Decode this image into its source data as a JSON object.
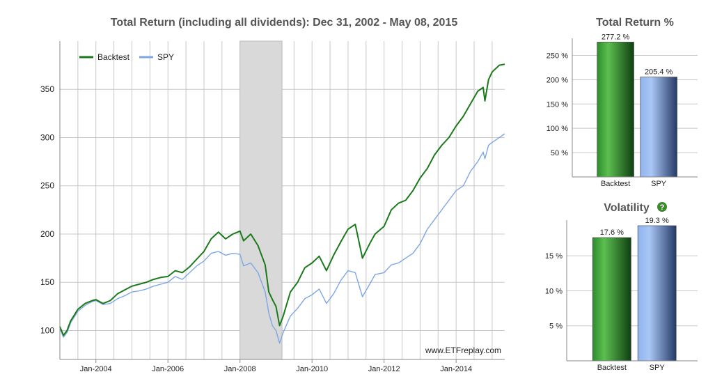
{
  "main_chart": {
    "title": "Total Return (including all dividends): Dec 31, 2002 - May 08, 2015",
    "watermark": "www.ETFreplay.com",
    "legend": [
      {
        "name": "Backtest",
        "color": "#1a7a1a"
      },
      {
        "name": "SPY",
        "color": "#7ea6e6"
      }
    ],
    "x_ticks": [
      "Jan-2004",
      "Jan-2006",
      "Jan-2008",
      "Jan-2010",
      "Jan-2012",
      "Jan-2014"
    ],
    "y_ticks": [
      "100",
      "150",
      "200",
      "250",
      "300",
      "350"
    ],
    "recession_band": [
      "Jan-2008",
      "Mar-2009"
    ],
    "recession_color": "#d9d9d9"
  },
  "total_return_chart": {
    "title": "Total Return %",
    "y_ticks": [
      "50 %",
      "100 %",
      "150 %",
      "200 %",
      "250 %"
    ],
    "bars": [
      {
        "name": "Backtest",
        "label": "277.2 %",
        "value": 277.2
      },
      {
        "name": "SPY",
        "label": "205.4 %",
        "value": 205.4
      }
    ]
  },
  "volatility_chart": {
    "title": "Volatility",
    "help_icon": "?",
    "y_ticks": [
      "5 %",
      "10 %",
      "15 %"
    ],
    "bars": [
      {
        "name": "Backtest",
        "label": "17.6 %",
        "value": 17.6
      },
      {
        "name": "SPY",
        "label": "19.3 %",
        "value": 19.3
      }
    ]
  },
  "chart_data": [
    {
      "type": "line",
      "title": "Total Return (including all dividends): Dec 31, 2002 - May 08, 2015",
      "xlabel": "",
      "ylabel": "",
      "xlim": [
        2003.0,
        2015.35
      ],
      "ylim": [
        70,
        400
      ],
      "grid": true,
      "legend_position": "top-left",
      "series": [
        {
          "name": "Backtest",
          "color": "#1a7a1a",
          "x": [
            2003.0,
            2003.1,
            2003.2,
            2003.3,
            2003.5,
            2003.7,
            2003.9,
            2004.0,
            2004.2,
            2004.4,
            2004.6,
            2004.8,
            2005.0,
            2005.2,
            2005.4,
            2005.6,
            2005.8,
            2006.0,
            2006.2,
            2006.4,
            2006.6,
            2006.8,
            2007.0,
            2007.2,
            2007.4,
            2007.6,
            2007.8,
            2008.0,
            2008.1,
            2008.3,
            2008.5,
            2008.7,
            2008.8,
            2008.9,
            2009.0,
            2009.1,
            2009.2,
            2009.4,
            2009.6,
            2009.8,
            2010.0,
            2010.2,
            2010.4,
            2010.6,
            2010.8,
            2011.0,
            2011.2,
            2011.4,
            2011.6,
            2011.75,
            2012.0,
            2012.2,
            2012.4,
            2012.6,
            2012.8,
            2013.0,
            2013.2,
            2013.4,
            2013.6,
            2013.8,
            2014.0,
            2014.2,
            2014.4,
            2014.6,
            2014.75,
            2014.8,
            2014.9,
            2015.0,
            2015.2,
            2015.35
          ],
          "y": [
            104,
            95,
            100,
            110,
            122,
            128,
            131,
            132,
            128,
            131,
            138,
            142,
            146,
            148,
            150,
            153,
            155,
            156,
            162,
            160,
            166,
            174,
            182,
            195,
            202,
            195,
            200,
            203,
            193,
            200,
            188,
            168,
            140,
            132,
            125,
            105,
            115,
            140,
            150,
            165,
            170,
            177,
            162,
            178,
            192,
            205,
            210,
            175,
            190,
            200,
            208,
            225,
            232,
            235,
            245,
            258,
            268,
            282,
            292,
            300,
            312,
            322,
            335,
            348,
            352,
            338,
            360,
            368,
            375,
            376
          ]
        },
        {
          "name": "SPY",
          "color": "#7ea6e6",
          "x": [
            2003.0,
            2003.1,
            2003.2,
            2003.3,
            2003.5,
            2003.7,
            2003.9,
            2004.0,
            2004.2,
            2004.4,
            2004.6,
            2004.8,
            2005.0,
            2005.2,
            2005.4,
            2005.6,
            2005.8,
            2006.0,
            2006.2,
            2006.4,
            2006.6,
            2006.8,
            2007.0,
            2007.2,
            2007.4,
            2007.6,
            2007.8,
            2008.0,
            2008.1,
            2008.3,
            2008.5,
            2008.7,
            2008.8,
            2008.9,
            2009.0,
            2009.1,
            2009.2,
            2009.4,
            2009.6,
            2009.8,
            2010.0,
            2010.2,
            2010.4,
            2010.6,
            2010.8,
            2011.0,
            2011.2,
            2011.4,
            2011.6,
            2011.75,
            2012.0,
            2012.2,
            2012.4,
            2012.6,
            2012.8,
            2013.0,
            2013.2,
            2013.4,
            2013.6,
            2013.8,
            2014.0,
            2014.2,
            2014.4,
            2014.6,
            2014.75,
            2014.8,
            2014.9,
            2015.0,
            2015.2,
            2015.35
          ],
          "y": [
            102,
            93,
            98,
            108,
            120,
            126,
            130,
            131,
            127,
            128,
            133,
            136,
            140,
            141,
            143,
            146,
            148,
            150,
            156,
            153,
            160,
            167,
            172,
            180,
            182,
            178,
            180,
            179,
            167,
            170,
            160,
            140,
            118,
            105,
            100,
            87,
            98,
            115,
            123,
            133,
            137,
            143,
            128,
            138,
            152,
            162,
            160,
            135,
            148,
            158,
            160,
            168,
            170,
            175,
            180,
            190,
            205,
            215,
            225,
            235,
            245,
            250,
            265,
            275,
            285,
            278,
            292,
            295,
            300,
            304
          ]
        }
      ]
    },
    {
      "type": "bar",
      "title": "Total Return %",
      "categories": [
        "Backtest",
        "SPY"
      ],
      "values": [
        277.2,
        205.4
      ],
      "ylim": [
        0,
        285
      ],
      "grid": true
    },
    {
      "type": "bar",
      "title": "Volatility",
      "categories": [
        "Backtest",
        "SPY"
      ],
      "values": [
        17.6,
        19.3
      ],
      "ylim": [
        0,
        19.3
      ],
      "grid": true
    }
  ]
}
